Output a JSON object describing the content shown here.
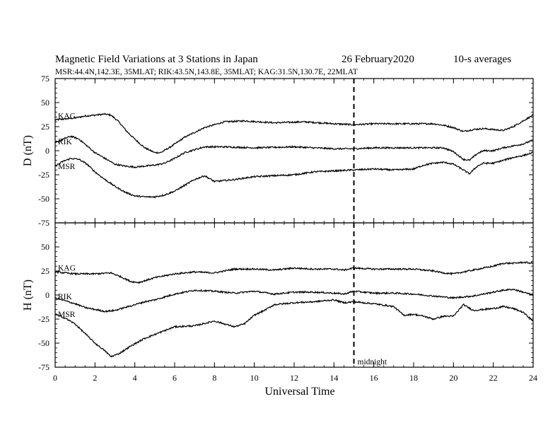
{
  "header": {
    "title": "Magnetic Field Variations at 3 Stations in Japan",
    "date": "26 February2020",
    "averaging": "10-s averages",
    "stations": "MSR:44.4N,142.3E, 35MLAT;  RIK:43.5N,143.8E, 35MLAT;  KAG:31.5N,130.7E, 22MLAT"
  },
  "chart_data": [
    {
      "type": "line",
      "panel": "D",
      "ylabel": "D (nT)",
      "ylim": [
        -75,
        75
      ],
      "yticks": [
        75,
        50,
        25,
        0,
        -25,
        -50,
        -75
      ],
      "xlim": [
        0,
        24
      ],
      "xticks": [
        0,
        2,
        4,
        6,
        8,
        10,
        12,
        14,
        16,
        18,
        20,
        22,
        24
      ],
      "grid": false,
      "series": [
        {
          "name": "KAG",
          "color": "#000000",
          "x": [
            0,
            0.5,
            1,
            1.5,
            2,
            2.5,
            2.8,
            3.2,
            3.6,
            4,
            4.5,
            5,
            5.3,
            5.8,
            6.5,
            7.5,
            8.5,
            9.5,
            11,
            12.5,
            14,
            15,
            16,
            17,
            18,
            19,
            19.6,
            20,
            20.5,
            21,
            21.5,
            22,
            22.5,
            23,
            23.5,
            24
          ],
          "y": [
            32,
            33,
            34,
            36,
            37,
            38,
            37,
            30,
            20,
            12,
            3,
            -2,
            -2,
            4,
            14,
            24,
            30,
            31,
            29,
            30,
            28,
            27,
            28,
            28,
            28,
            28,
            26,
            24,
            20,
            22,
            23,
            22,
            21,
            25,
            31,
            37
          ]
        },
        {
          "name": "RIK",
          "color": "#000000",
          "x": [
            0,
            0.5,
            0.8,
            1.2,
            1.6,
            2,
            2.5,
            3,
            3.5,
            4,
            4.5,
            5,
            5.5,
            6,
            6.5,
            7.5,
            8.5,
            10,
            12,
            14,
            15,
            16,
            17,
            18,
            19,
            19.5,
            20,
            20.5,
            20.8,
            21.2,
            21.5,
            22,
            22.5,
            23,
            23.5,
            24
          ],
          "y": [
            8,
            13,
            15,
            12,
            5,
            -2,
            -8,
            -14,
            -16,
            -17,
            -16,
            -15,
            -13,
            -8,
            -2,
            4,
            4,
            3,
            4,
            2,
            2,
            3,
            3,
            3,
            3,
            3,
            -1,
            -9,
            -10,
            -3,
            0,
            0,
            3,
            5,
            7,
            11
          ]
        },
        {
          "name": "MSR",
          "color": "#000000",
          "x": [
            0,
            0.4,
            0.8,
            1.2,
            1.6,
            2,
            2.5,
            3,
            3.5,
            4,
            4.5,
            5,
            5.5,
            6,
            6.5,
            7,
            7.5,
            8,
            9,
            10,
            11,
            12,
            13,
            14,
            15,
            16,
            17,
            18,
            18.5,
            19,
            19.5,
            20,
            20.5,
            20.8,
            21.2,
            21.5,
            22,
            22.5,
            23,
            23.5,
            24
          ],
          "y": [
            -16,
            -11,
            -8,
            -9,
            -14,
            -22,
            -30,
            -37,
            -43,
            -47,
            -48,
            -48,
            -46,
            -42,
            -36,
            -30,
            -26,
            -32,
            -30,
            -27,
            -26,
            -25,
            -22,
            -21,
            -20,
            -19,
            -20,
            -19,
            -15,
            -13,
            -12,
            -14,
            -20,
            -24,
            -16,
            -13,
            -13,
            -10,
            -7,
            -5,
            -2
          ]
        }
      ]
    },
    {
      "type": "line",
      "panel": "H",
      "ylabel": "H (nT)",
      "ylim": [
        -75,
        75
      ],
      "yticks": [
        50,
        25,
        0,
        -25,
        -50,
        -75
      ],
      "xlim": [
        0,
        24
      ],
      "xticks": [
        0,
        2,
        4,
        6,
        8,
        10,
        12,
        14,
        16,
        18,
        20,
        22,
        24
      ],
      "xticklabels": [
        "0",
        "2",
        "4",
        "6",
        "8",
        "10",
        "12",
        "14",
        "16",
        "18",
        "20",
        "22",
        "24"
      ],
      "xlabel": "Universal Time",
      "grid": false,
      "series": [
        {
          "name": "KAG",
          "color": "#000000",
          "x": [
            0,
            1,
            2,
            2.8,
            3.3,
            3.8,
            4.2,
            5,
            6,
            7,
            8,
            9,
            10,
            11,
            12,
            13,
            14,
            14.5,
            15,
            16,
            17,
            18,
            19,
            19.5,
            20,
            21,
            22,
            22.5,
            23,
            23.5,
            24
          ],
          "y": [
            24,
            22,
            22,
            23,
            19,
            14,
            13,
            18,
            22,
            24,
            23,
            27,
            27,
            26,
            28,
            27,
            27,
            26,
            28,
            27,
            27,
            27,
            25,
            23,
            22,
            26,
            30,
            33,
            33,
            34,
            33
          ]
        },
        {
          "name": "RIK",
          "color": "#000000",
          "x": [
            0,
            0.5,
            1,
            1.5,
            2,
            2.5,
            3,
            3.5,
            4,
            4.5,
            5,
            6,
            7,
            8,
            9,
            10,
            11,
            12,
            13,
            14,
            14.5,
            15,
            16,
            17,
            18,
            19,
            20,
            21,
            22,
            22.5,
            23,
            23.5,
            24
          ],
          "y": [
            -3,
            -6,
            -9,
            -13,
            -15,
            -17,
            -16,
            -13,
            -10,
            -7,
            -5,
            1,
            5,
            4,
            2,
            4,
            1,
            3,
            3,
            2,
            1,
            4,
            2,
            2,
            1,
            -1,
            -3,
            -1,
            3,
            5,
            6,
            3,
            0
          ]
        },
        {
          "name": "MSR",
          "color": "#000000",
          "x": [
            0,
            0.5,
            1,
            1.5,
            2,
            2.5,
            2.8,
            3.2,
            3.8,
            4.5,
            5,
            5.5,
            6,
            7,
            8,
            9,
            9.5,
            10,
            10.5,
            11,
            12,
            13,
            14,
            14.5,
            15,
            16,
            17,
            17.5,
            18,
            18.5,
            19,
            19.5,
            20,
            20.5,
            21,
            22,
            22.5,
            23,
            23.5,
            24
          ],
          "y": [
            -20,
            -24,
            -30,
            -40,
            -50,
            -58,
            -64,
            -61,
            -53,
            -45,
            -41,
            -37,
            -33,
            -32,
            -27,
            -33,
            -30,
            -21,
            -16,
            -10,
            -8,
            -7,
            -5,
            -8,
            -7,
            -9,
            -12,
            -21,
            -20,
            -22,
            -25,
            -22,
            -22,
            -10,
            -16,
            -14,
            -12,
            -14,
            -18,
            -27
          ]
        }
      ]
    }
  ],
  "annotations": {
    "midnight_ut": 15,
    "midnight_label": "midnight"
  }
}
